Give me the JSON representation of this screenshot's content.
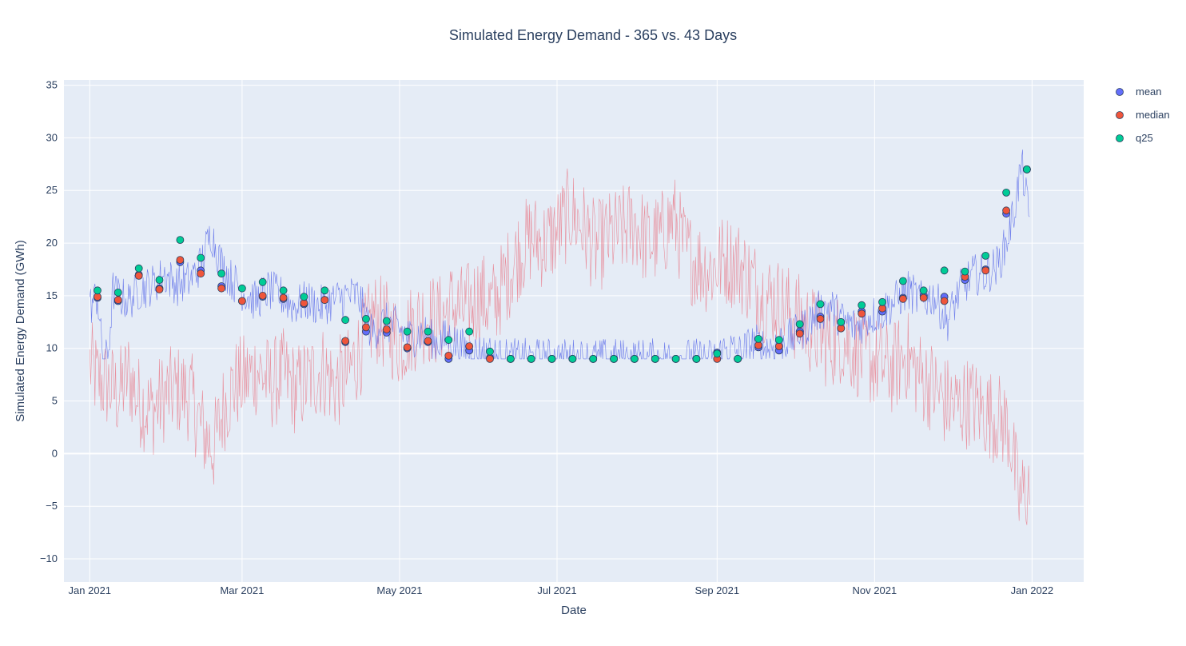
{
  "chart_data": {
    "type": "scatter",
    "title": "Simulated Energy Demand - 365 vs. 43 Days",
    "xlabel": "Date",
    "ylabel": "Simulated Energy Demand (GWh)",
    "xlim": [
      "2020-12-22",
      "2022-01-21"
    ],
    "ylim": [
      -12.2,
      35.5
    ],
    "grid": true,
    "legend_position": "top-right",
    "x_ticks": [
      {
        "date": "2021-01-01",
        "label": "Jan 2021"
      },
      {
        "date": "2021-03-01",
        "label": "Mar 2021"
      },
      {
        "date": "2021-05-01",
        "label": "May 2021"
      },
      {
        "date": "2021-07-01",
        "label": "Jul 2021"
      },
      {
        "date": "2021-09-01",
        "label": "Sep 2021"
      },
      {
        "date": "2021-11-01",
        "label": "Nov 2021"
      },
      {
        "date": "2022-01-01",
        "label": "Jan 2022"
      }
    ],
    "y_ticks": [
      {
        "value": -10,
        "label": "−10"
      },
      {
        "value": -5,
        "label": "−5"
      },
      {
        "value": 0,
        "label": "0"
      },
      {
        "value": 5,
        "label": "5"
      },
      {
        "value": 10,
        "label": "10"
      },
      {
        "value": 15,
        "label": "15"
      },
      {
        "value": 20,
        "label": "20"
      },
      {
        "value": 25,
        "label": "25"
      },
      {
        "value": 30,
        "label": "30"
      },
      {
        "value": 35,
        "label": "35"
      }
    ],
    "lines": [
      {
        "color": "#e8707f",
        "x": [
          "2021-01-01",
          "2021-01-04",
          "2021-01-08",
          "2021-01-12",
          "2021-01-16",
          "2021-01-20",
          "2021-01-25",
          "2021-01-30",
          "2021-02-04",
          "2021-02-09",
          "2021-02-14",
          "2021-02-18",
          "2021-02-22",
          "2021-02-26",
          "2021-03-02",
          "2021-03-07",
          "2021-03-12",
          "2021-03-17",
          "2021-03-22",
          "2021-03-27",
          "2021-04-01",
          "2021-04-06",
          "2021-04-11",
          "2021-04-16",
          "2021-04-21",
          "2021-04-26",
          "2021-05-01",
          "2021-05-06",
          "2021-05-11",
          "2021-05-16",
          "2021-05-21",
          "2021-05-26",
          "2021-06-01",
          "2021-06-06",
          "2021-06-11",
          "2021-06-16",
          "2021-06-21",
          "2021-06-26",
          "2021-07-01",
          "2021-07-06",
          "2021-07-11",
          "2021-07-16",
          "2021-07-21",
          "2021-07-26",
          "2021-07-31",
          "2021-08-05",
          "2021-08-10",
          "2021-08-15",
          "2021-08-20",
          "2021-08-25",
          "2021-08-30",
          "2021-09-04",
          "2021-09-09",
          "2021-09-14",
          "2021-09-19",
          "2021-09-24",
          "2021-09-29",
          "2021-10-04",
          "2021-10-09",
          "2021-10-14",
          "2021-10-19",
          "2021-10-24",
          "2021-10-29",
          "2021-11-03",
          "2021-11-08",
          "2021-11-13",
          "2021-11-18",
          "2021-11-23",
          "2021-11-28",
          "2021-12-03",
          "2021-12-08",
          "2021-12-13",
          "2021-12-18",
          "2021-12-23",
          "2021-12-27",
          "2021-12-31"
        ],
        "y": [
          8.5,
          7.0,
          6.5,
          5.5,
          7.5,
          5.0,
          4.0,
          5.5,
          6.0,
          5.5,
          2.0,
          0.5,
          4.5,
          6.5,
          7.0,
          8.0,
          6.5,
          7.5,
          6.0,
          7.0,
          8.0,
          6.5,
          7.5,
          10.0,
          13.0,
          12.0,
          10.5,
          12.0,
          13.0,
          12.5,
          14.0,
          13.5,
          15.0,
          14.0,
          16.5,
          19.0,
          20.5,
          20.0,
          21.0,
          23.0,
          21.5,
          19.5,
          20.5,
          21.0,
          22.0,
          20.0,
          20.5,
          22.5,
          19.0,
          18.0,
          17.5,
          18.5,
          18.0,
          16.5,
          15.0,
          14.5,
          13.5,
          12.5,
          11.5,
          10.5,
          11.0,
          10.0,
          9.0,
          8.5,
          8.0,
          9.5,
          7.5,
          6.5,
          5.0,
          4.5,
          5.0,
          4.0,
          3.5,
          2.5,
          -4.5,
          -3.0
        ]
      },
      {
        "color": "#6272ea",
        "x": [
          "2021-01-01",
          "2021-01-04",
          "2021-01-06",
          "2021-01-08",
          "2021-01-10",
          "2021-01-12",
          "2021-01-16",
          "2021-01-20",
          "2021-01-25",
          "2021-01-30",
          "2021-02-04",
          "2021-02-09",
          "2021-02-13",
          "2021-02-17",
          "2021-02-21",
          "2021-02-25",
          "2021-03-01",
          "2021-03-06",
          "2021-03-11",
          "2021-03-16",
          "2021-03-21",
          "2021-03-26",
          "2021-03-31",
          "2021-04-05",
          "2021-04-10",
          "2021-04-15",
          "2021-04-20",
          "2021-04-25",
          "2021-04-30",
          "2021-05-05",
          "2021-05-10",
          "2021-05-15",
          "2021-05-20",
          "2021-05-25",
          "2021-05-30",
          "2021-06-04",
          "2021-06-09",
          "2021-06-14",
          "2021-06-20",
          "2021-07-01",
          "2021-07-15",
          "2021-08-01",
          "2021-08-15",
          "2021-08-25",
          "2021-08-31",
          "2021-09-05",
          "2021-09-10",
          "2021-09-15",
          "2021-09-20",
          "2021-09-25",
          "2021-09-30",
          "2021-10-05",
          "2021-10-10",
          "2021-10-15",
          "2021-10-20",
          "2021-10-25",
          "2021-10-30",
          "2021-11-04",
          "2021-11-09",
          "2021-11-14",
          "2021-11-19",
          "2021-11-24",
          "2021-11-29",
          "2021-12-04",
          "2021-12-09",
          "2021-12-14",
          "2021-12-19",
          "2021-12-22",
          "2021-12-25",
          "2021-12-28",
          "2021-12-31"
        ],
        "y": [
          14.0,
          15.0,
          9.0,
          9.0,
          15.5,
          15.0,
          14.5,
          15.5,
          16.0,
          17.0,
          16.0,
          16.5,
          18.0,
          21.0,
          18.0,
          16.5,
          15.5,
          14.5,
          15.5,
          15.0,
          14.0,
          14.5,
          14.0,
          14.5,
          15.0,
          15.0,
          11.5,
          12.5,
          12.0,
          11.0,
          11.5,
          10.5,
          11.0,
          10.0,
          9.5,
          9.5,
          9.0,
          9.0,
          9.0,
          9.0,
          9.0,
          9.0,
          9.0,
          9.0,
          9.0,
          10.0,
          9.5,
          10.5,
          10.0,
          10.5,
          11.0,
          12.0,
          13.5,
          14.0,
          12.5,
          12.0,
          13.0,
          13.5,
          14.5,
          15.5,
          14.5,
          15.0,
          12.5,
          15.5,
          17.0,
          17.0,
          18.0,
          20.0,
          23.0,
          27.5,
          22.0
        ]
      }
    ],
    "series": [
      {
        "name": "mean",
        "color": "#636efa",
        "x": [
          "2021-01-04",
          "2021-01-12",
          "2021-01-20",
          "2021-01-28",
          "2021-02-05",
          "2021-02-13",
          "2021-02-21",
          "2021-03-01",
          "2021-03-09",
          "2021-03-17",
          "2021-03-25",
          "2021-04-02",
          "2021-04-10",
          "2021-04-18",
          "2021-04-26",
          "2021-05-04",
          "2021-05-12",
          "2021-05-20",
          "2021-05-28",
          "2021-06-05",
          "2021-06-13",
          "2021-06-21",
          "2021-06-29",
          "2021-07-07",
          "2021-07-15",
          "2021-07-23",
          "2021-07-31",
          "2021-08-08",
          "2021-08-16",
          "2021-08-24",
          "2021-09-01",
          "2021-09-09",
          "2021-09-17",
          "2021-09-25",
          "2021-10-03",
          "2021-10-11",
          "2021-10-19",
          "2021-10-27",
          "2021-11-04",
          "2021-11-12",
          "2021-11-20",
          "2021-11-28",
          "2021-12-06",
          "2021-12-14",
          "2021-12-22",
          "2021-12-30"
        ],
        "y": [
          14.8,
          14.5,
          17.0,
          15.7,
          18.2,
          17.4,
          15.9,
          14.5,
          14.9,
          14.7,
          14.2,
          14.6,
          10.6,
          11.6,
          11.5,
          10.0,
          10.6,
          9.0,
          9.8,
          9.1,
          9.0,
          9.0,
          9.0,
          9.0,
          9.0,
          9.0,
          9.0,
          9.0,
          9.0,
          9.0,
          9.6,
          9.0,
          10.1,
          9.8,
          11.6,
          13.0,
          11.9,
          13.5,
          13.5,
          14.8,
          15.0,
          14.9,
          16.5,
          17.5,
          22.8,
          27.0
        ]
      },
      {
        "name": "median",
        "color": "#ef553b",
        "x": [
          "2021-01-04",
          "2021-01-12",
          "2021-01-20",
          "2021-01-28",
          "2021-02-05",
          "2021-02-13",
          "2021-02-21",
          "2021-03-01",
          "2021-03-09",
          "2021-03-17",
          "2021-03-25",
          "2021-04-02",
          "2021-04-10",
          "2021-04-18",
          "2021-04-26",
          "2021-05-04",
          "2021-05-12",
          "2021-05-20",
          "2021-05-28",
          "2021-06-05",
          "2021-06-13",
          "2021-06-21",
          "2021-06-29",
          "2021-07-07",
          "2021-07-15",
          "2021-07-23",
          "2021-07-31",
          "2021-08-08",
          "2021-08-16",
          "2021-08-24",
          "2021-09-01",
          "2021-09-09",
          "2021-09-17",
          "2021-09-25",
          "2021-10-03",
          "2021-10-11",
          "2021-10-19",
          "2021-10-27",
          "2021-11-04",
          "2021-11-12",
          "2021-11-20",
          "2021-11-28",
          "2021-12-06",
          "2021-12-14",
          "2021-12-22",
          "2021-12-30"
        ],
        "y": [
          14.9,
          14.6,
          16.9,
          15.6,
          18.4,
          17.1,
          15.7,
          14.5,
          15.0,
          14.8,
          14.3,
          14.6,
          10.7,
          12.0,
          11.8,
          10.1,
          10.7,
          9.3,
          10.2,
          9.0,
          9.0,
          9.0,
          9.0,
          9.0,
          9.0,
          9.0,
          9.0,
          9.0,
          9.0,
          9.0,
          9.0,
          9.0,
          10.3,
          10.2,
          11.4,
          12.8,
          11.9,
          13.3,
          13.8,
          14.7,
          14.8,
          14.5,
          16.8,
          17.4,
          23.1,
          27.0
        ]
      },
      {
        "name": "q25",
        "color": "#00cc96",
        "x": [
          "2021-01-04",
          "2021-01-12",
          "2021-01-20",
          "2021-01-28",
          "2021-02-05",
          "2021-02-13",
          "2021-02-21",
          "2021-03-01",
          "2021-03-09",
          "2021-03-17",
          "2021-03-25",
          "2021-04-02",
          "2021-04-10",
          "2021-04-18",
          "2021-04-26",
          "2021-05-04",
          "2021-05-12",
          "2021-05-20",
          "2021-05-28",
          "2021-06-05",
          "2021-06-13",
          "2021-06-21",
          "2021-06-29",
          "2021-07-07",
          "2021-07-15",
          "2021-07-23",
          "2021-07-31",
          "2021-08-08",
          "2021-08-16",
          "2021-08-24",
          "2021-09-01",
          "2021-09-09",
          "2021-09-17",
          "2021-09-25",
          "2021-10-03",
          "2021-10-11",
          "2021-10-19",
          "2021-10-27",
          "2021-11-04",
          "2021-11-12",
          "2021-11-20",
          "2021-11-28",
          "2021-12-06",
          "2021-12-14",
          "2021-12-22",
          "2021-12-30"
        ],
        "y": [
          15.5,
          15.3,
          17.6,
          16.5,
          20.3,
          18.6,
          17.1,
          15.7,
          16.3,
          15.5,
          14.9,
          15.5,
          12.7,
          12.8,
          12.6,
          11.6,
          11.6,
          10.8,
          11.6,
          9.7,
          9.0,
          9.0,
          9.0,
          9.0,
          9.0,
          9.0,
          9.0,
          9.0,
          9.0,
          9.0,
          9.5,
          9.0,
          10.9,
          10.8,
          12.3,
          14.2,
          12.5,
          14.1,
          14.4,
          16.4,
          15.5,
          17.4,
          17.3,
          18.8,
          24.8,
          27.0
        ]
      }
    ]
  }
}
